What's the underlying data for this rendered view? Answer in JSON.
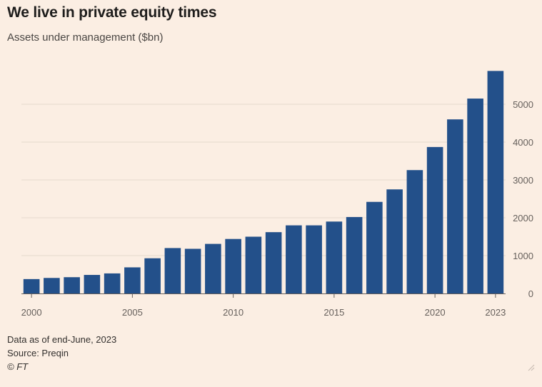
{
  "header": {
    "title": "We live in private equity times",
    "subtitle": "Assets under management ($bn)"
  },
  "footer": {
    "note": "Data as of end-June, 2023",
    "source": "Source: Preqin",
    "credit": "© FT"
  },
  "colors": {
    "background": "#fbeee3",
    "bar": "#23508a",
    "grid": "#e6d9ce",
    "axis": "#66605c"
  },
  "chart_data": {
    "type": "bar",
    "title": "We live in private equity times",
    "subtitle": "Assets under management ($bn)",
    "xlabel": "",
    "ylabel": "",
    "x": [
      2000,
      2001,
      2002,
      2003,
      2004,
      2005,
      2006,
      2007,
      2008,
      2009,
      2010,
      2011,
      2012,
      2013,
      2014,
      2015,
      2016,
      2017,
      2018,
      2019,
      2020,
      2021,
      2022,
      2023
    ],
    "values": [
      380,
      410,
      430,
      490,
      530,
      690,
      930,
      1200,
      1180,
      1310,
      1440,
      1500,
      1620,
      1800,
      1800,
      1900,
      2020,
      2420,
      2750,
      3260,
      3870,
      4600,
      5150,
      5880
    ],
    "x_tick_labels": [
      "2000",
      "2005",
      "2010",
      "2015",
      "2020",
      "2023"
    ],
    "y_ticks": [
      0,
      1000,
      2000,
      3000,
      4000,
      5000
    ],
    "y_tick_labels": [
      "0",
      "1000",
      "2000",
      "3000",
      "4000",
      "5000"
    ],
    "ylim": [
      0,
      6000
    ],
    "y_axis_side": "right",
    "grid": true
  }
}
